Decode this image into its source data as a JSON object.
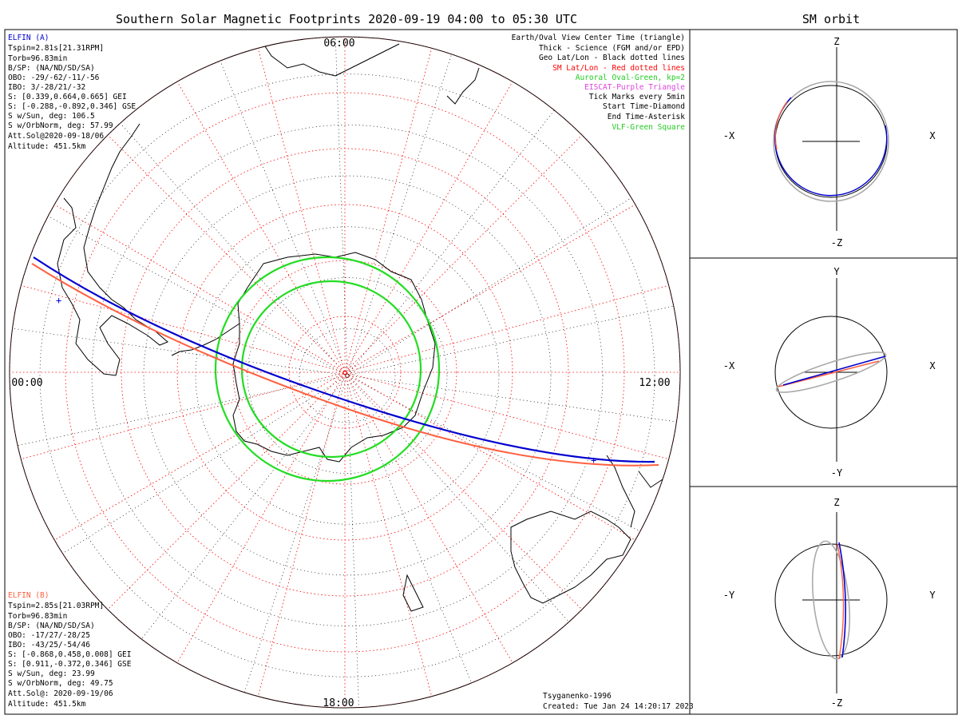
{
  "title": "Southern Solar Magnetic Footprints 2020-09-19 04:00 to 05:30 UTC",
  "orbit_title": "SM orbit",
  "mlt_labels": {
    "top": "06:00",
    "left": "00:00",
    "right": "12:00",
    "bottom": "18:00"
  },
  "colors": {
    "probe_a": "#0000d0",
    "probe_b": "#ff6040",
    "oval": "#22dd22",
    "sm_grid": "#ff0000",
    "geo_grid": "#000000",
    "orbit_gray": "#aaaaaa",
    "legend_eiscat": "#dd44dd"
  },
  "probe_a": {
    "name": "ELFIN (A)",
    "lines": [
      "Tspin=2.81s[21.31RPM]",
      "Torb=96.83min",
      "B/SP: (NA/ND/SD/SA)",
      "OBO: -29/-62/-11/-56",
      "IBO: 3/-28/21/-32",
      "S: [0.339,0.664,0.665] GEI",
      "S: [-0.288,-0.892,0.346] GSE",
      "S w/Sun, deg: 106.5",
      "S w/OrbNorm, deg: 57.99",
      "Att.Sol@2020-09-18/06",
      "Altitude: 451.5km"
    ]
  },
  "probe_b": {
    "name": "ELFIN (B)",
    "lines": [
      "Tspin=2.85s[21.03RPM]",
      "Torb=96.83min",
      "B/SP: (NA/ND/SD/SA)",
      "OBO: -17/27/-28/25",
      "IBO: -43/25/-54/46",
      "S: [-0.868,0.458,0.008] GEI",
      "S: [0.911,-0.372,0.346] GSE",
      "S w/Sun, deg: 23.99",
      "S w/OrbNorm, deg: 49.75",
      "Att.Sol@: 2020-09-19/06",
      "Altitude: 451.5km"
    ]
  },
  "legend": [
    {
      "text": "Earth/Oval View Center Time (triangle)",
      "color": "#000000"
    },
    {
      "text": "Thick - Science (FGM and/or EPD)",
      "color": "#000000"
    },
    {
      "text": "Geo Lat/Lon - Black dotted lines",
      "color": "#000000"
    },
    {
      "text": "SM Lat/Lon - Red dotted lines",
      "color": "#ff0000"
    },
    {
      "text": "Auroral Oval-Green, kp=2",
      "color": "#22cc22"
    },
    {
      "text": "EISCAT-Purple Triangle",
      "color": "#dd44dd"
    },
    {
      "text": "Tick Marks every 5min",
      "color": "#000000"
    },
    {
      "text": "Start Time-Diamond",
      "color": "#000000"
    },
    {
      "text": "End Time-Asterisk",
      "color": "#000000"
    },
    {
      "text": "VLF-Green Square",
      "color": "#22cc22"
    }
  ],
  "footer": {
    "model": "Tsyganenko-1996",
    "created": "Created: Tue Jan 24 14:20:17 2023"
  },
  "orbit_panels": [
    {
      "top": "Z",
      "bottom": "-Z",
      "left": "-X",
      "right": "X"
    },
    {
      "top": "Y",
      "bottom": "-Y",
      "left": "-X",
      "right": "X"
    },
    {
      "top": "Z",
      "bottom": "-Z",
      "left": "-Y",
      "right": "Y"
    }
  ]
}
